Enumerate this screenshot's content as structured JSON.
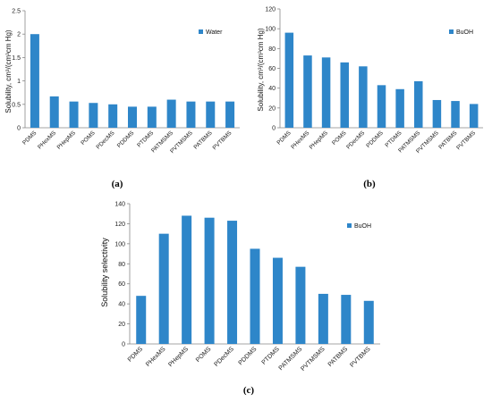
{
  "chart_data": [
    {
      "panel_label": "(a)",
      "type": "bar",
      "ylabel": "Solubility, cm³/(cm³cm Hg)",
      "ylim": [
        0,
        2.5
      ],
      "yticks": [
        "0",
        "0.5",
        "1",
        "1.5",
        "2",
        "2.5"
      ],
      "categories": [
        "PDMS",
        "PHexMS",
        "PHepMS",
        "POMS",
        "PDecMS",
        "PDDMS",
        "PTDMS",
        "PATMSMS",
        "PVTMSMS",
        "PATBMS",
        "PVTBMS"
      ],
      "series": [
        {
          "name": "Water",
          "values": [
            2.0,
            0.67,
            0.56,
            0.53,
            0.5,
            0.45,
            0.45,
            0.6,
            0.56,
            0.56,
            0.56
          ]
        }
      ],
      "legend": "top-right",
      "color": "#2e86c9",
      "grid": false
    },
    {
      "panel_label": "(b)",
      "type": "bar",
      "ylabel": "Solubility, cm³/(cm³cm Hg)",
      "ylim": [
        0,
        120
      ],
      "yticks": [
        "0",
        "20",
        "40",
        "60",
        "80",
        "100",
        "120"
      ],
      "categories": [
        "PDMS",
        "PHexMS",
        "PHepMS",
        "POMS",
        "PDecMS",
        "PDDMS",
        "PTDMS",
        "PATMSMS",
        "PVTMSMS",
        "PATBMS",
        "PVTBMS"
      ],
      "series": [
        {
          "name": "BuOH",
          "values": [
            96,
            73,
            71,
            66,
            62,
            43,
            39,
            47,
            28,
            27,
            24
          ]
        }
      ],
      "legend": "top-right",
      "color": "#2e86c9",
      "grid": false
    },
    {
      "panel_label": "(c)",
      "type": "bar",
      "ylabel": "Solubility selectivity",
      "ylim": [
        0,
        140
      ],
      "yticks": [
        "0",
        "20",
        "40",
        "60",
        "80",
        "100",
        "120",
        "140"
      ],
      "categories": [
        "PDMS",
        "PHexMS",
        "PHepMS",
        "POMS",
        "PDecMS",
        "PDDMS",
        "PTDMS",
        "PATMSMS",
        "PVTMSMS",
        "PATBMS",
        "PVTBMS"
      ],
      "series": [
        {
          "name": "BuOH",
          "values": [
            48,
            110,
            128,
            126,
            123,
            95,
            86,
            77,
            50,
            49,
            43
          ]
        }
      ],
      "legend": "top-right",
      "color": "#2e86c9",
      "grid": false
    }
  ]
}
